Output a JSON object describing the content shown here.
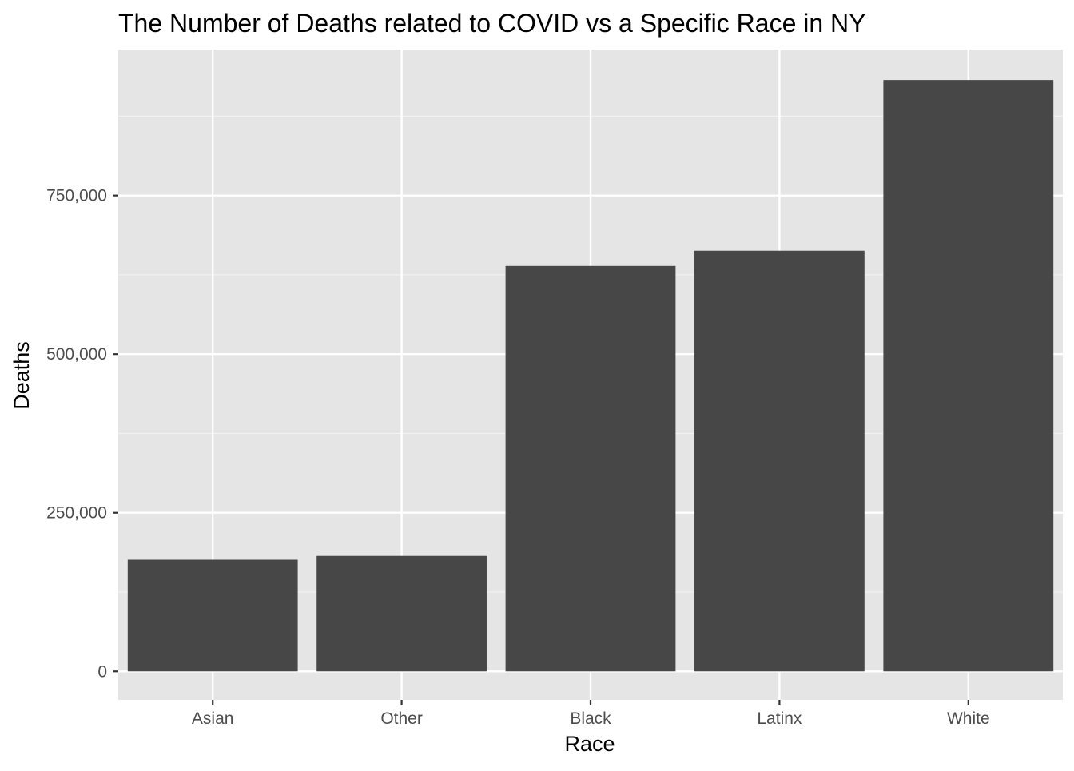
{
  "chart_data": {
    "type": "bar",
    "title": "The Number of Deaths related to COVID vs a Specific Race in NY",
    "xlabel": "Race",
    "ylabel": "Deaths",
    "categories": [
      "Asian",
      "Other",
      "Black",
      "Latinx",
      "White"
    ],
    "values": [
      176000,
      182000,
      639000,
      663000,
      932000
    ],
    "ylim": [
      -45000,
      980000
    ],
    "y_ticks": [
      0,
      250000,
      500000,
      750000
    ],
    "y_tick_labels": [
      "0",
      "250,000",
      "500,000",
      "750,000"
    ],
    "grid": true,
    "legend": "none",
    "colors": {
      "bar": "#474747",
      "panel": "#e5e5e5",
      "grid_major": "#ffffff",
      "grid_minor": "#f2f2f2",
      "tick_text": "#4d4d4d"
    }
  }
}
